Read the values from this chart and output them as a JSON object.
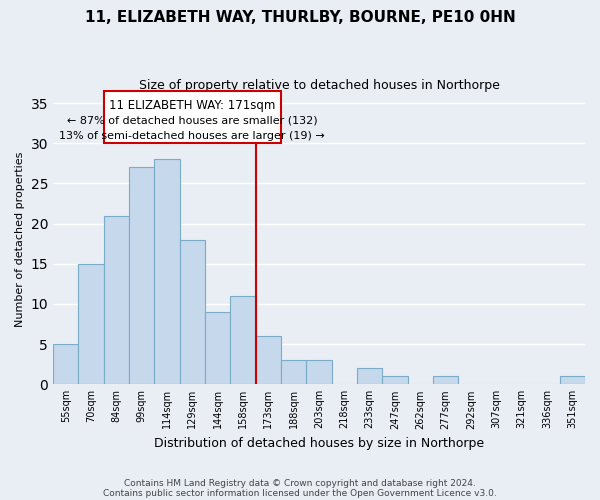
{
  "title": "11, ELIZABETH WAY, THURLBY, BOURNE, PE10 0HN",
  "subtitle": "Size of property relative to detached houses in Northorpe",
  "xlabel": "Distribution of detached houses by size in Northorpe",
  "ylabel": "Number of detached properties",
  "footnote1": "Contains HM Land Registry data © Crown copyright and database right 2024.",
  "footnote2": "Contains public sector information licensed under the Open Government Licence v3.0.",
  "bar_labels": [
    "55sqm",
    "70sqm",
    "84sqm",
    "99sqm",
    "114sqm",
    "129sqm",
    "144sqm",
    "158sqm",
    "173sqm",
    "188sqm",
    "203sqm",
    "218sqm",
    "233sqm",
    "247sqm",
    "262sqm",
    "277sqm",
    "292sqm",
    "307sqm",
    "321sqm",
    "336sqm",
    "351sqm"
  ],
  "bar_values": [
    5,
    15,
    21,
    27,
    28,
    18,
    9,
    11,
    6,
    3,
    3,
    0,
    2,
    1,
    0,
    1,
    0,
    0,
    0,
    0,
    1
  ],
  "bar_color": "#c5d8ec",
  "bar_edge_color": "#7aacc8",
  "vline_color": "#cc0000",
  "annotation_title": "11 ELIZABETH WAY: 171sqm",
  "annotation_line1": "← 87% of detached houses are smaller (132)",
  "annotation_line2": "13% of semi-detached houses are larger (19) →",
  "box_color": "#ffffff",
  "box_edge_color": "#cc0000",
  "ylim": [
    0,
    36
  ],
  "yticks": [
    0,
    5,
    10,
    15,
    20,
    25,
    30,
    35
  ],
  "background_color": "#e8eef4",
  "grid_color": "#ffffff"
}
